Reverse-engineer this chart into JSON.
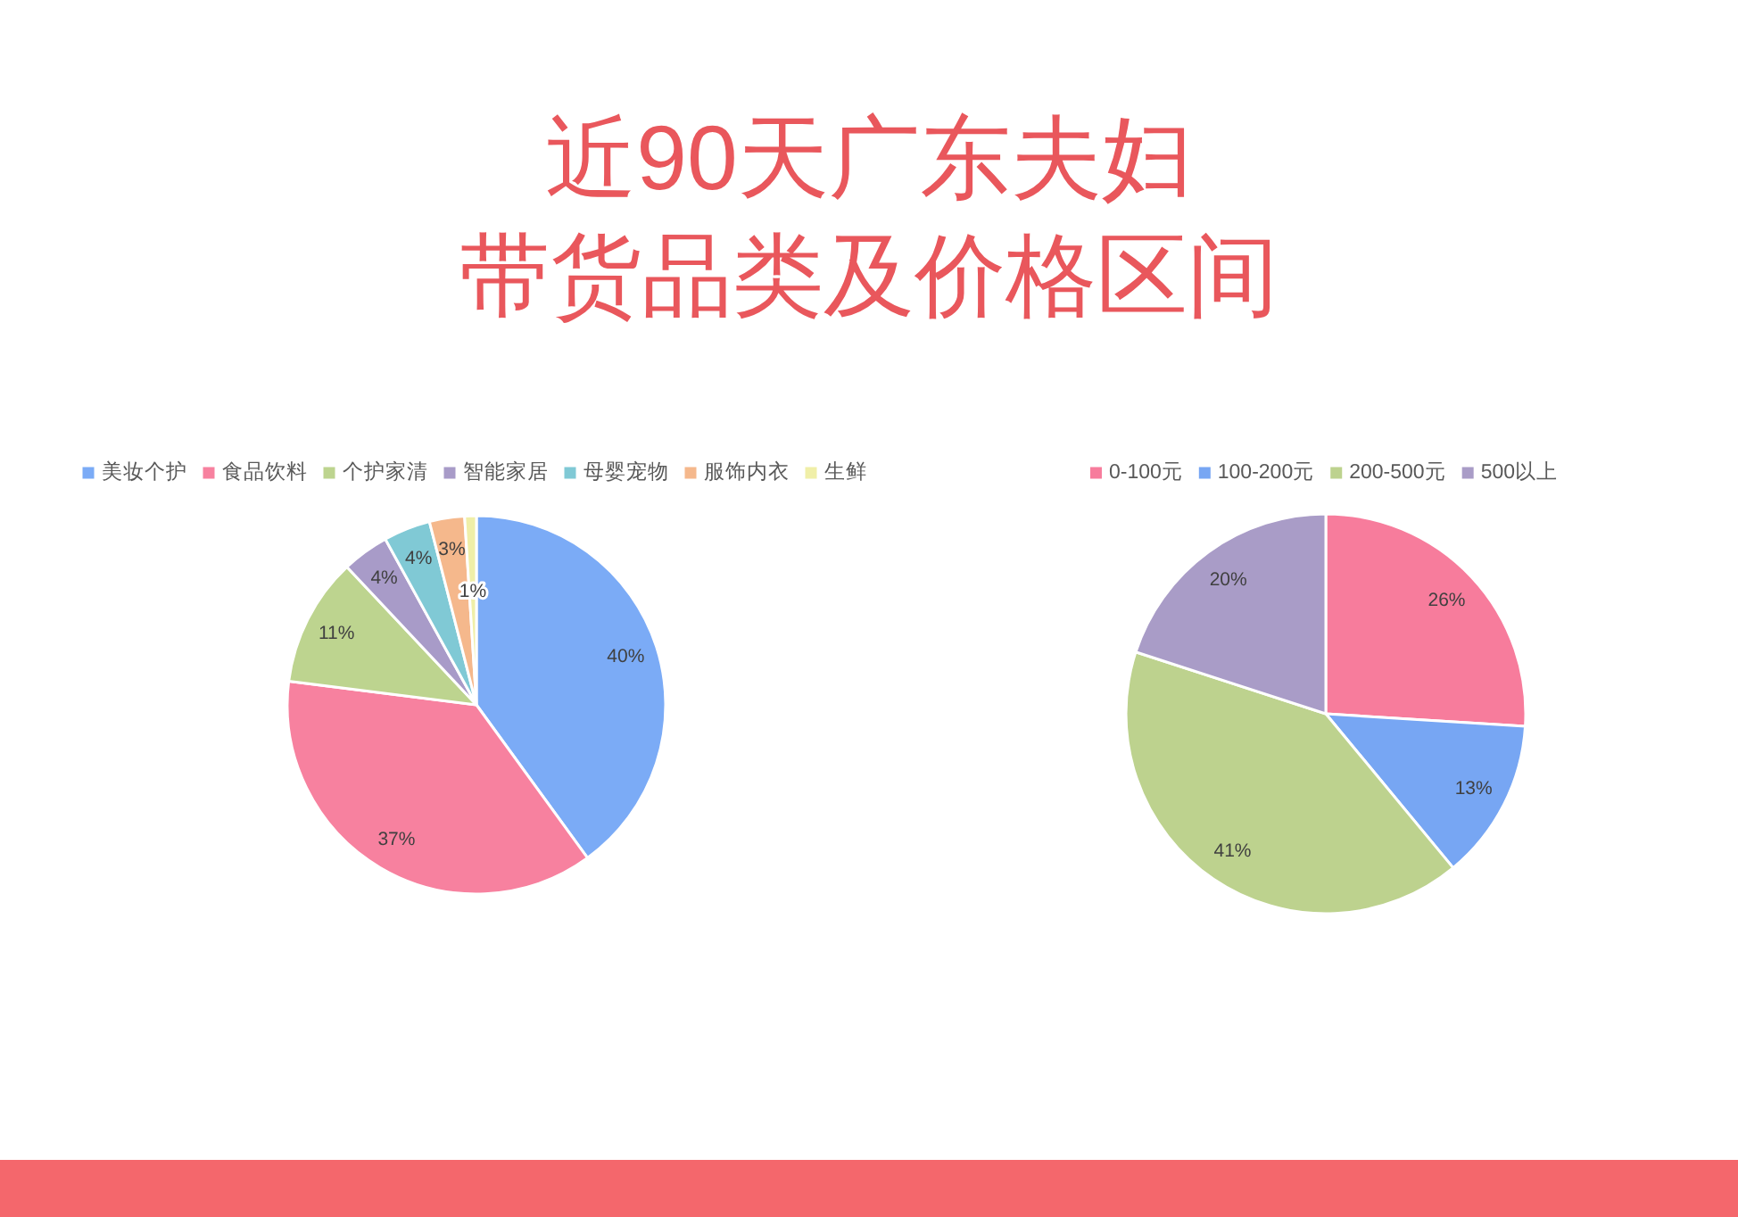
{
  "chart_data": [
    {
      "type": "pie",
      "title": "近90天广东夫妇带货品类及价格区间",
      "categories": [
        "美妆个护",
        "食品饮料",
        "个护家清",
        "智能家居",
        "母婴宠物",
        "服饰内衣",
        "生鲜"
      ],
      "values": [
        40,
        37,
        11,
        4,
        4,
        3,
        1
      ],
      "colors": [
        "#7babf6",
        "#f7819f",
        "#bdd48f",
        "#a89bc8",
        "#80c9d5",
        "#f5b88c",
        "#f0efa8"
      ],
      "value_labels": [
        "40%",
        "37%",
        "11%",
        "4%",
        "4%",
        "3%",
        "1%"
      ],
      "legend": "top"
    },
    {
      "type": "pie",
      "categories": [
        "0-100元",
        "100-200元",
        "200-500元",
        "500以上"
      ],
      "values": [
        26,
        13,
        41,
        20
      ],
      "colors": [
        "#f77c9c",
        "#77a6f3",
        "#bdd28e",
        "#a99cc7"
      ],
      "value_labels": [
        "26%",
        "13%",
        "41%",
        "20%"
      ],
      "legend": "top"
    }
  ]
}
